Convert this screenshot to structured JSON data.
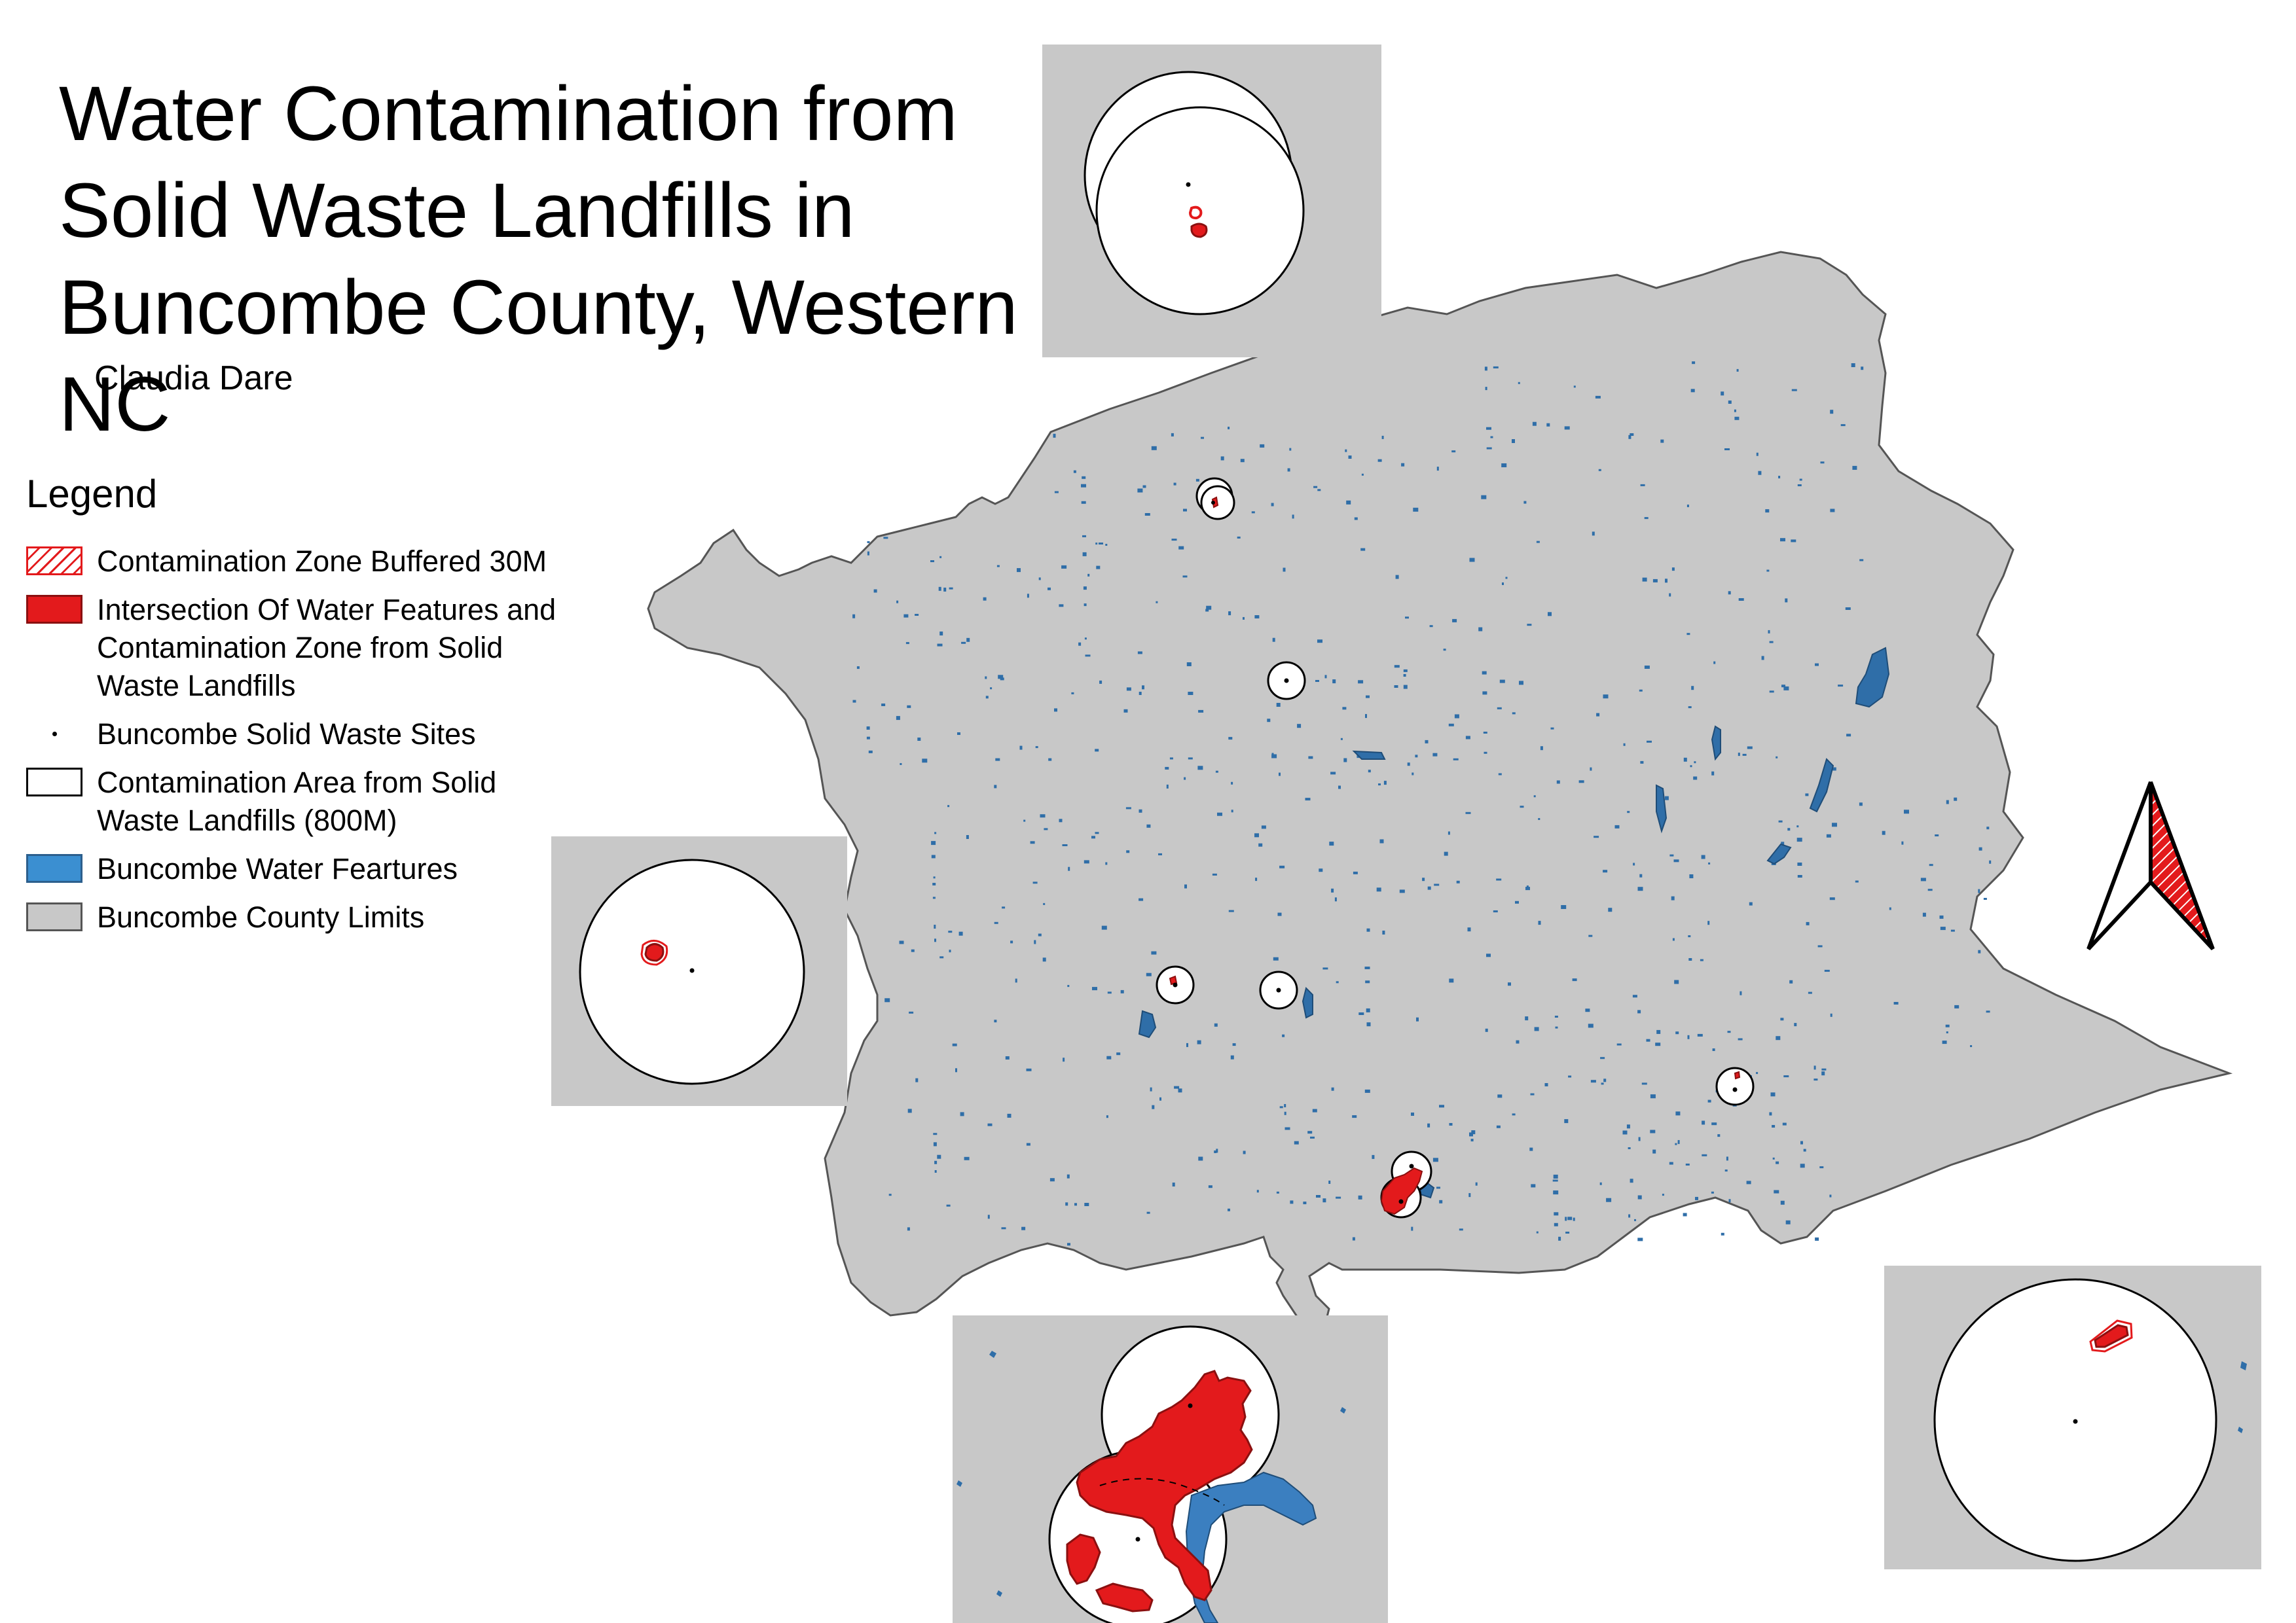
{
  "map": {
    "title": "Water Contamination from Solid Waste Landfills in Buncombe County, Western NC",
    "author": "Claudia Dare"
  },
  "legend": {
    "title": "Legend",
    "items": [
      {
        "label": "Contamination Zone Buffered 30M",
        "swatch": "hatch"
      },
      {
        "label": "Intersection Of Water Features and\nContamination Zone from Solid\nWaste Landfills",
        "swatch": "red"
      },
      {
        "label": "Buncombe Solid Waste Sites",
        "swatch": "dot"
      },
      {
        "label": "Contamination Area from Solid\n Waste Landfills (800M)",
        "swatch": "white"
      },
      {
        "label": "Buncombe Water Feartures",
        "swatch": "blue"
      },
      {
        "label": "Buncombe County Limits",
        "swatch": "grey"
      }
    ]
  },
  "colors": {
    "county_fill": "#c8c8c8",
    "county_stroke": "#555555",
    "water": "#2f6ea8",
    "contamination": "#e31a1c",
    "buffer_fill": "#ffffff",
    "site": "#000000",
    "background": "#ffffff"
  },
  "icons": [
    "north-arrow-icon"
  ]
}
